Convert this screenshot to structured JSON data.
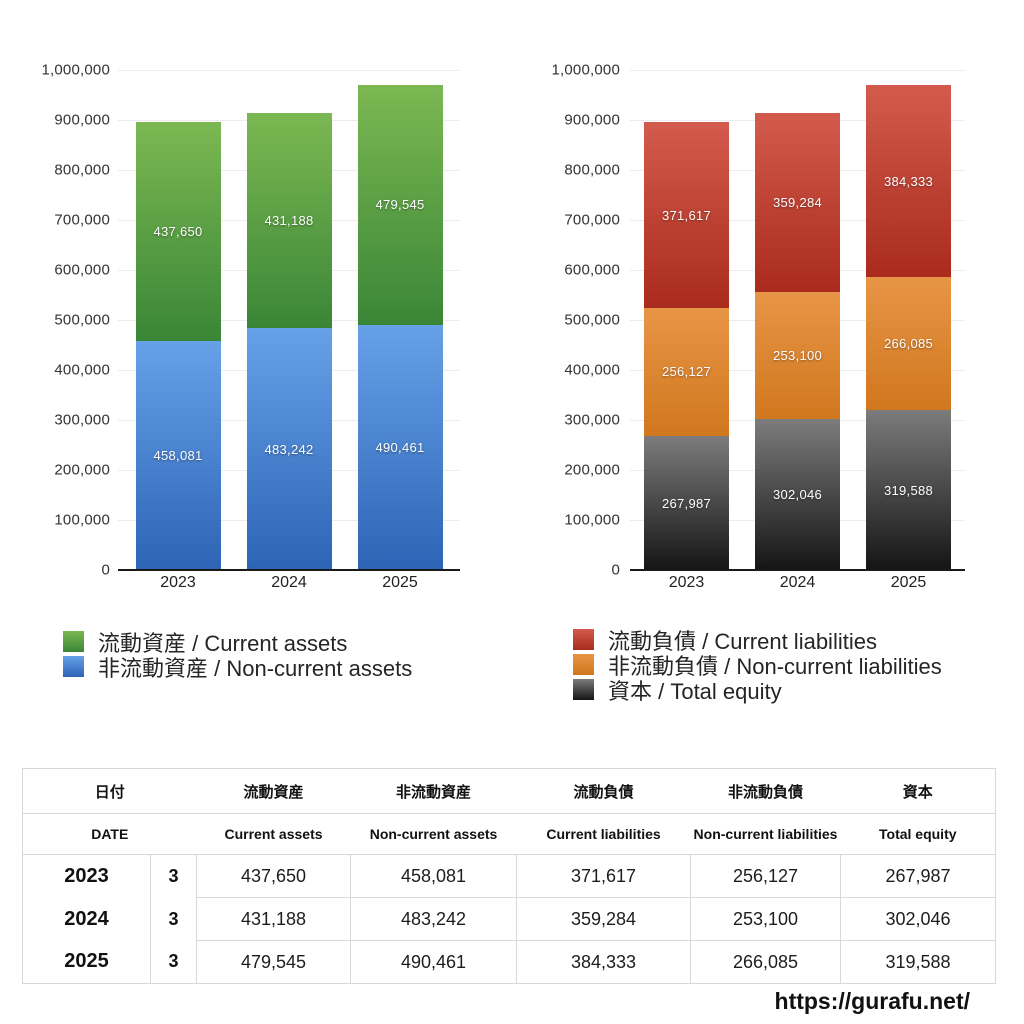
{
  "chart_data": [
    {
      "type": "bar",
      "stacked": true,
      "title": "",
      "xlabel": "",
      "ylabel": "",
      "categories": [
        "2023",
        "2024",
        "2025"
      ],
      "series": [
        {
          "name": "流動資産 / Current assets",
          "values": [
            437650,
            431188,
            479545
          ],
          "color_top": "#7cb852",
          "color_bottom": "#3a8637"
        },
        {
          "name": "非流動資産 / Non-current assets",
          "values": [
            458081,
            483242,
            490461
          ],
          "color_top": "#66a1e8",
          "color_bottom": "#2d64b5"
        }
      ],
      "ylim": [
        0,
        1000000
      ],
      "y_tick_labels": [
        "1,000,000",
        "900,000",
        "800,000",
        "700,000",
        "600,000",
        "500,000",
        "400,000",
        "300,000",
        "200,000",
        "100,000",
        "0"
      ],
      "grid": true,
      "legend_position": "bottom-left"
    },
    {
      "type": "bar",
      "stacked": true,
      "title": "",
      "xlabel": "",
      "ylabel": "",
      "categories": [
        "2023",
        "2024",
        "2025"
      ],
      "series": [
        {
          "name": "流動負債 / Current liabilities",
          "values": [
            371617,
            359284,
            384333
          ],
          "color_top": "#d35b4d",
          "color_bottom": "#aa2b1d"
        },
        {
          "name": "非流動負債 / Non-current liabilities",
          "values": [
            256127,
            253100,
            266085
          ],
          "color_top": "#e79546",
          "color_bottom": "#d1771e"
        },
        {
          "name": "資本 / Total equity",
          "values": [
            267987,
            302046,
            319588
          ],
          "color_top": "#7c7c7c",
          "color_bottom": "#151515"
        }
      ],
      "ylim": [
        0,
        1000000
      ],
      "y_tick_labels": [
        "1,000,000",
        "900,000",
        "800,000",
        "700,000",
        "600,000",
        "500,000",
        "400,000",
        "300,000",
        "200,000",
        "100,000",
        "0"
      ],
      "grid": true,
      "legend_position": "bottom-left"
    }
  ],
  "table": {
    "header_ja": [
      "日付",
      "流動資産",
      "非流動資産",
      "流動負債",
      "非流動負債",
      "資本"
    ],
    "header_en": [
      "DATE",
      "Current assets",
      "Non-current assets",
      "Current liabilities",
      "Non-current liabilities",
      "Total equity"
    ],
    "rows": [
      {
        "year": "2023",
        "month": "3",
        "values": [
          "437,650",
          "458,081",
          "371,617",
          "256,127",
          "267,987"
        ]
      },
      {
        "year": "2024",
        "month": "3",
        "values": [
          "431,188",
          "483,242",
          "359,284",
          "253,100",
          "302,046"
        ]
      },
      {
        "year": "2025",
        "month": "3",
        "values": [
          "479,545",
          "490,461",
          "384,333",
          "266,085",
          "319,588"
        ]
      }
    ]
  },
  "footer": {
    "url": "https://gurafu.net/"
  }
}
